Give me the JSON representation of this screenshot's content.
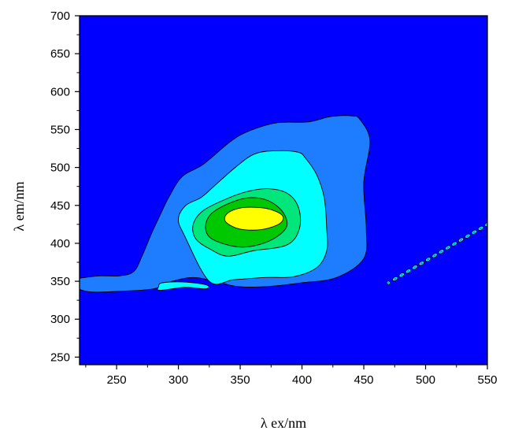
{
  "chart_data": {
    "type": "contour",
    "title": "",
    "xlabel": "λ ex/nm",
    "ylabel": "λ em/nm",
    "xlim": [
      220,
      550
    ],
    "ylim": [
      240,
      700
    ],
    "xticks": [
      250,
      300,
      350,
      400,
      450,
      500,
      550
    ],
    "yticks": [
      250,
      300,
      350,
      400,
      450,
      500,
      550,
      600,
      650,
      700
    ],
    "colors": {
      "background": "#0000ff",
      "level1": "#1e7dff",
      "level2": "#00ffff",
      "level3": "#00e67a",
      "level4": "#00c800",
      "level5": "#ffff00",
      "contour_line": "#000000"
    },
    "contours": [
      {
        "level": 1,
        "color_key": "level1",
        "points": [
          [
            280,
            340
          ],
          [
            295,
            350
          ],
          [
            312,
            355
          ],
          [
            330,
            350
          ],
          [
            348,
            343
          ],
          [
            372,
            343
          ],
          [
            400,
            348
          ],
          [
            428,
            355
          ],
          [
            450,
            380
          ],
          [
            452,
            420
          ],
          [
            450,
            480
          ],
          [
            455,
            535
          ],
          [
            447,
            563
          ],
          [
            440,
            568
          ],
          [
            423,
            567
          ],
          [
            405,
            560
          ],
          [
            380,
            559
          ],
          [
            357,
            548
          ],
          [
            342,
            534
          ],
          [
            320,
            504
          ],
          [
            303,
            488
          ],
          [
            292,
            460
          ],
          [
            286,
            440
          ],
          [
            278,
            412
          ],
          [
            271,
            385
          ],
          [
            264,
            363
          ],
          [
            252,
            357
          ],
          [
            235,
            357
          ],
          [
            215,
            352
          ],
          [
            213,
            345
          ],
          [
            228,
            336
          ],
          [
            255,
            337
          ]
        ]
      },
      {
        "level": 2,
        "color_key": "level2",
        "points": [
          [
            325,
            350
          ],
          [
            345,
            352
          ],
          [
            370,
            355
          ],
          [
            393,
            356
          ],
          [
            412,
            368
          ],
          [
            420,
            390
          ],
          [
            420,
            420
          ],
          [
            418,
            460
          ],
          [
            412,
            490
          ],
          [
            403,
            512
          ],
          [
            397,
            520
          ],
          [
            380,
            522
          ],
          [
            362,
            518
          ],
          [
            346,
            500
          ],
          [
            328,
            474
          ],
          [
            318,
            460
          ],
          [
            306,
            450
          ],
          [
            300,
            432
          ],
          [
            305,
            410
          ]
        ]
      },
      {
        "level": 2,
        "color_key": "level2",
        "points": [
          [
            285,
            338
          ],
          [
            305,
            342
          ],
          [
            322,
            340
          ],
          [
            323,
            345
          ],
          [
            305,
            349
          ],
          [
            287,
            348
          ],
          [
            284,
            343
          ]
        ]
      },
      {
        "level": 3,
        "color_key": "level3",
        "points": [
          [
            340,
            383
          ],
          [
            360,
            390
          ],
          [
            388,
            398
          ],
          [
            398,
            420
          ],
          [
            397,
            448
          ],
          [
            388,
            466
          ],
          [
            372,
            472
          ],
          [
            355,
            468
          ],
          [
            338,
            458
          ],
          [
            320,
            443
          ],
          [
            312,
            425
          ],
          [
            314,
            406
          ],
          [
            326,
            392
          ]
        ]
      },
      {
        "level": 4,
        "color_key": "level4",
        "points": [
          [
            350,
            395
          ],
          [
            372,
            402
          ],
          [
            387,
            420
          ],
          [
            385,
            440
          ],
          [
            373,
            456
          ],
          [
            357,
            460
          ],
          [
            340,
            452
          ],
          [
            326,
            438
          ],
          [
            322,
            420
          ],
          [
            328,
            405
          ]
        ]
      },
      {
        "level": 5,
        "color_key": "level5",
        "points": [
          [
            349,
            419
          ],
          [
            367,
            418
          ],
          [
            382,
            426
          ],
          [
            384,
            437
          ],
          [
            371,
            446
          ],
          [
            352,
            447
          ],
          [
            340,
            440
          ],
          [
            338,
            429
          ]
        ]
      }
    ],
    "diagonal_band": {
      "color_key": "level1",
      "x_range": [
        470,
        550
      ],
      "y_range": [
        348,
        425
      ]
    },
    "grid": false,
    "legend": "none"
  }
}
